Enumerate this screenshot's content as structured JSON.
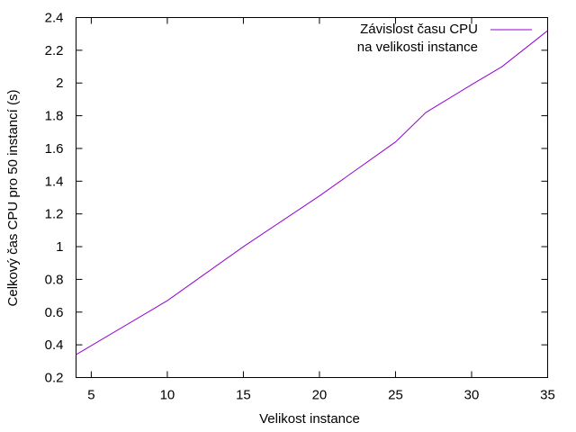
{
  "chart_data": {
    "type": "line",
    "title": "",
    "xlabel": "Velikost instance",
    "ylabel": "Celkový čas CPU pro 50 instancí (s)",
    "xlim": [
      4,
      35
    ],
    "ylim": [
      0.2,
      2.4
    ],
    "xticks": [
      5,
      10,
      15,
      20,
      25,
      30,
      35
    ],
    "yticks": [
      0.2,
      0.4,
      0.6,
      0.8,
      1,
      1.2,
      1.4,
      1.6,
      1.8,
      2,
      2.2,
      2.4
    ],
    "grid": false,
    "legend": {
      "position": "top-right",
      "lines": [
        "Závislost času CPU",
        "na velikosti instance"
      ]
    },
    "series": [
      {
        "name": "Závislost času CPU na velikosti instance",
        "color": "#9400d3",
        "x": [
          4,
          10,
          15,
          20,
          25,
          27,
          30,
          32,
          35
        ],
        "y": [
          0.34,
          0.67,
          1.0,
          1.31,
          1.64,
          1.82,
          1.99,
          2.1,
          2.32
        ]
      }
    ]
  }
}
